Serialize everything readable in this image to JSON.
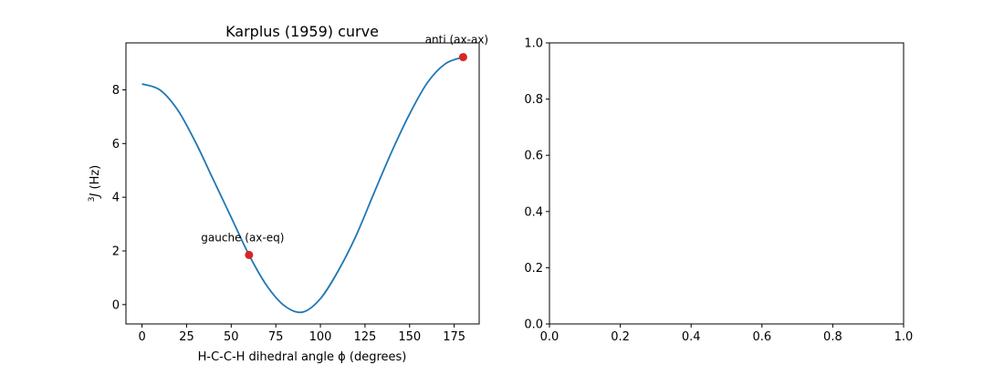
{
  "chart_data": [
    {
      "type": "line",
      "title": "Karplus (1959) curve",
      "xlabel": "H-C-C-H dihedral angle ϕ (degrees)",
      "ylabel_sup": "3",
      "ylabel_italic": "J",
      "ylabel_rest": " (Hz)",
      "xlim": [
        -9,
        189
      ],
      "ylim": [
        -0.72,
        9.75
      ],
      "xticks": [
        0,
        25,
        50,
        75,
        100,
        125,
        150,
        175
      ],
      "yticks": [
        0,
        2,
        4,
        6,
        8
      ],
      "series": [
        {
          "x": [
            0,
            10,
            20,
            30,
            40,
            50,
            60,
            70,
            80,
            90,
            100,
            110,
            120,
            130,
            140,
            150,
            160,
            170,
            180
          ],
          "y": [
            8.22,
            8.0,
            7.25,
            6.05,
            4.65,
            3.25,
            1.85,
            0.7,
            -0.05,
            -0.28,
            0.22,
            1.26,
            2.57,
            4.15,
            5.7,
            7.1,
            8.27,
            8.97,
            9.22
          ],
          "color": "#1f77b4"
        }
      ],
      "points": [
        {
          "x": 60,
          "y": 1.85,
          "label": "gauche (ax-eq)",
          "color": "#d62728"
        },
        {
          "x": 180,
          "y": 9.22,
          "label": "anti (ax-ax)",
          "color": "#d62728"
        }
      ]
    },
    {
      "type": "line",
      "title": "",
      "xlim": [
        0,
        1
      ],
      "ylim": [
        0,
        1
      ],
      "xticks": [
        "0.0",
        "0.2",
        "0.4",
        "0.6",
        "0.8",
        "1.0"
      ],
      "yticks": [
        "0.0",
        "0.2",
        "0.4",
        "0.6",
        "0.8",
        "1.0"
      ],
      "series": []
    }
  ]
}
